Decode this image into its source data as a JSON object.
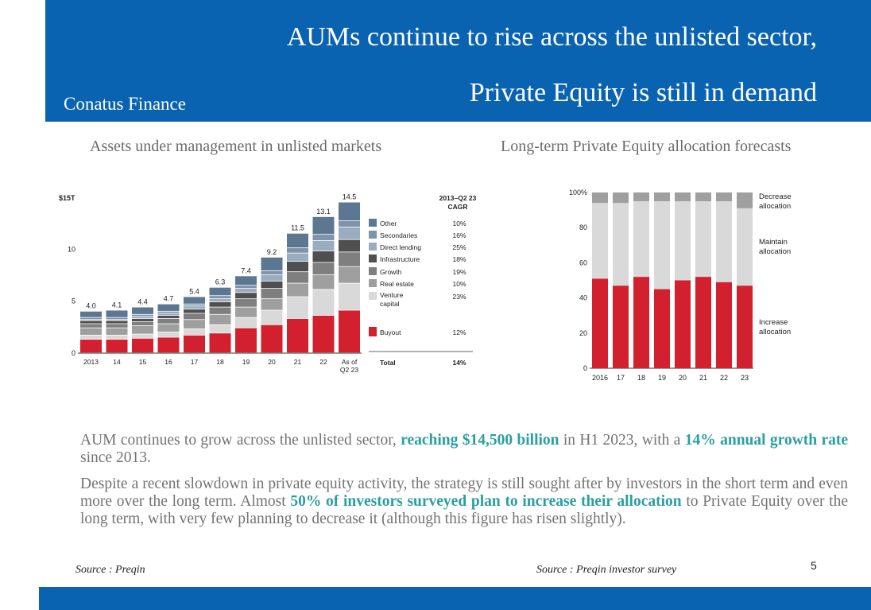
{
  "header": {
    "brand": "Conatus Finance",
    "title_line1": "AUMs continue to rise across the unlisted sector,",
    "title_line2": "Private Equity is still in demand"
  },
  "left_chart_title": "Assets under management in unlisted markets",
  "right_chart_title": "Long-term Private Equity allocation forecasts",
  "chart_data": [
    {
      "type": "bar",
      "stacked": true,
      "ylabel_top": "$15T",
      "y_ticks": [
        "0",
        "5",
        "10"
      ],
      "ylim": [
        0,
        15
      ],
      "categories": [
        "2013",
        "14",
        "15",
        "16",
        "17",
        "18",
        "19",
        "20",
        "21",
        "22",
        "As of Q2 23"
      ],
      "totals": [
        4.0,
        4.1,
        4.4,
        4.7,
        5.4,
        6.3,
        7.4,
        9.2,
        11.5,
        13.1,
        14.5
      ],
      "total_labels": [
        "4.0",
        "4.1",
        "4.4",
        "4.7",
        "5.4",
        "6.3",
        "7.4",
        "9.2",
        "11.5",
        "13.1",
        "14.5"
      ],
      "series": [
        {
          "name": "Buyout",
          "color": "#d3202e",
          "values": [
            1.3,
            1.3,
            1.4,
            1.5,
            1.7,
            1.9,
            2.4,
            2.7,
            3.3,
            3.6,
            4.1
          ]
        },
        {
          "name": "Venture capital",
          "color": "#d9d9d9",
          "values": [
            0.4,
            0.4,
            0.4,
            0.5,
            0.6,
            0.8,
            1.0,
            1.4,
            2.1,
            2.5,
            2.6
          ]
        },
        {
          "name": "Real estate",
          "color": "#9f9f9f",
          "values": [
            0.7,
            0.7,
            0.8,
            0.8,
            0.9,
            1.0,
            1.0,
            1.1,
            1.3,
            1.4,
            1.6
          ]
        },
        {
          "name": "Growth",
          "color": "#7f7f7f",
          "values": [
            0.4,
            0.4,
            0.4,
            0.5,
            0.6,
            0.7,
            0.8,
            1.0,
            1.1,
            1.2,
            1.4
          ]
        },
        {
          "name": "Infrastructure",
          "color": "#4f4f4f",
          "values": [
            0.3,
            0.3,
            0.3,
            0.3,
            0.4,
            0.5,
            0.6,
            0.7,
            1.0,
            1.1,
            1.2
          ]
        },
        {
          "name": "Direct lending",
          "color": "#99acc0",
          "values": [
            0.1,
            0.1,
            0.2,
            0.2,
            0.3,
            0.3,
            0.4,
            0.6,
            0.8,
            1.0,
            1.2
          ]
        },
        {
          "name": "Secondaries",
          "color": "#7f93aa",
          "values": [
            0.2,
            0.2,
            0.2,
            0.2,
            0.2,
            0.3,
            0.3,
            0.4,
            0.5,
            0.6,
            0.6
          ]
        },
        {
          "name": "Other",
          "color": "#5b7791",
          "values": [
            0.6,
            0.7,
            0.7,
            0.7,
            0.7,
            0.8,
            0.9,
            1.3,
            1.4,
            1.7,
            1.8
          ]
        }
      ],
      "legend_header": "2013–Q2 23 CAGR",
      "legend": [
        {
          "name": "Other",
          "cagr": "10%",
          "color": "#5b7791"
        },
        {
          "name": "Secondaries",
          "cagr": "16%",
          "color": "#7f93aa"
        },
        {
          "name": "Direct lending",
          "cagr": "25%",
          "color": "#99acc0"
        },
        {
          "name": "Infrastructure",
          "cagr": "18%",
          "color": "#4f4f4f"
        },
        {
          "name": "Growth",
          "cagr": "19%",
          "color": "#7f7f7f"
        },
        {
          "name": "Real estate",
          "cagr": "10%",
          "color": "#9f9f9f"
        },
        {
          "name": "Venture capital",
          "cagr": "23%",
          "color": "#d9d9d9"
        },
        {
          "name": "Buyout",
          "cagr": "12%",
          "color": "#d3202e"
        }
      ],
      "total_row": {
        "name": "Total",
        "cagr": "14%"
      }
    },
    {
      "type": "bar",
      "stacked": true,
      "y_ticks": [
        "0",
        "20",
        "40",
        "60",
        "80",
        "100%"
      ],
      "ylim": [
        0,
        100
      ],
      "categories": [
        "2016",
        "17",
        "18",
        "19",
        "20",
        "21",
        "22",
        "23"
      ],
      "series": [
        {
          "name": "Increase allocation",
          "color": "#d3202e",
          "values": [
            51,
            47,
            52,
            45,
            50,
            52,
            49,
            47
          ]
        },
        {
          "name": "Maintain allocation",
          "color": "#d9d9d9",
          "values": [
            43,
            47,
            43,
            50,
            45,
            43,
            46,
            44
          ]
        },
        {
          "name": "Decrease allocation",
          "color": "#9f9f9f",
          "values": [
            6,
            6,
            5,
            5,
            5,
            5,
            5,
            9
          ]
        }
      ]
    }
  ],
  "body": {
    "p1_a": "AUM continues to grow across the unlisted sector, ",
    "p1_hl1": "reaching $14,500 billion",
    "p1_b": " in H1 2023, with a ",
    "p1_hl2": "14% annual growth rate",
    "p1_c": " since 2013.",
    "p2_a": "Despite a recent slowdown in private equity activity, the strategy is still sought after by investors in the short term and even more over the long term. Almost ",
    "p2_hl": "50% of investors surveyed plan to increase their allocation",
    "p2_b": " to Private Equity over the long term, with very few planning to decrease it (although this figure has risen slightly)."
  },
  "sources": {
    "left": "Source : Preqin",
    "right": "Source : Preqin investor survey"
  },
  "page_number": "5"
}
